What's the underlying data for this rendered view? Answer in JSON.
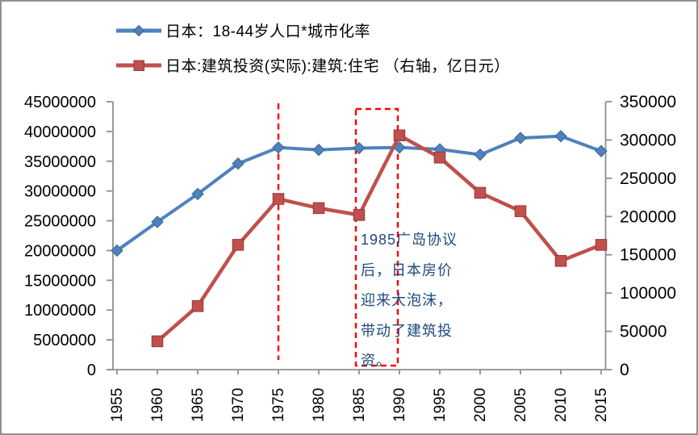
{
  "legend": {
    "items": [
      {
        "label": "日本：18-44岁人口*城市化率",
        "color": "#4F81BD",
        "edge": "#3A6693",
        "marker": "diamond"
      },
      {
        "label": "日本:建筑投资(实际):建筑:住宅 （右轴，亿日元）",
        "color": "#C0504D",
        "edge": "#963634",
        "marker": "square"
      }
    ]
  },
  "annotation": {
    "text": "1985广岛协议后，日本房价迎来大泡沫，带动了建筑投资。",
    "color": "#1F497D"
  },
  "chart_data": {
    "type": "line",
    "categories": [
      "1955",
      "1960",
      "1965",
      "1970",
      "1975",
      "1980",
      "1985",
      "1990",
      "1995",
      "2000",
      "2005",
      "2010",
      "2015"
    ],
    "series": [
      {
        "name": "日本：18-44岁人口*城市化率",
        "axis": "left",
        "color": "#4F81BD",
        "edge": "#3A6693",
        "marker": "diamond",
        "values": [
          20000000,
          24800000,
          29500000,
          34600000,
          37300000,
          36900000,
          37200000,
          37300000,
          37000000,
          36100000,
          38900000,
          39200000,
          36700000
        ]
      },
      {
        "name": "日本:建筑投资(实际):建筑:住宅 （右轴，亿日元）",
        "axis": "right",
        "color": "#C0504D",
        "edge": "#963634",
        "marker": "square",
        "values": [
          null,
          37000,
          83000,
          163000,
          223000,
          211000,
          202000,
          306000,
          277000,
          231000,
          207000,
          142000,
          163000
        ]
      }
    ],
    "left_axis": {
      "min": 0,
      "max": 45000000,
      "step": 5000000
    },
    "right_axis": {
      "min": 0,
      "max": 350000,
      "step": 50000
    },
    "grid": false,
    "legend_position": "top-left",
    "annotations": {
      "vline_category": "1975",
      "box_categories": [
        "1985",
        "1990"
      ],
      "note": "1985广岛协议后，日本房价迎来大泡沫，带动了建筑投资。"
    },
    "axis_color": "#8F8F8F",
    "tick_label_color": "#000000",
    "dashed_color": "#FF0000"
  }
}
